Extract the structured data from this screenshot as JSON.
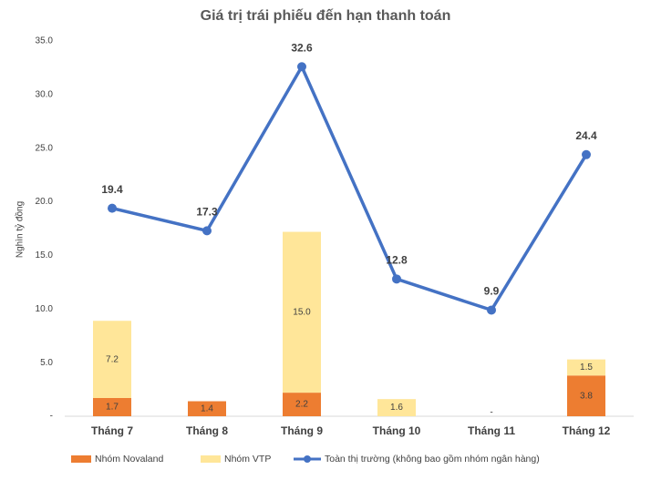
{
  "chart_data": {
    "type": "bar",
    "title": "Giá trị trái phiếu đến hạn thanh toán",
    "y_label": "Nghìn tỷ đồng",
    "categories": [
      "Tháng 7",
      "Tháng 8",
      "Tháng 9",
      "Tháng 10",
      "Tháng 11",
      "Tháng 12"
    ],
    "stacked": true,
    "series": [
      {
        "name": "Nhóm Novaland",
        "type": "bar",
        "color": "#ed7d31",
        "values": [
          1.7,
          1.4,
          2.2,
          0,
          0,
          3.8
        ],
        "value_labels": [
          "1.7",
          "1.4",
          "2.2",
          null,
          "-",
          "3.8"
        ]
      },
      {
        "name": "Nhóm VTP",
        "type": "bar",
        "color": "#ffe699",
        "values": [
          7.2,
          0,
          15.0,
          1.6,
          0,
          1.5
        ],
        "value_labels": [
          "7.2",
          null,
          "15.0",
          "1.6",
          null,
          "1.5"
        ]
      },
      {
        "name": "Toàn thị trường (không bao gồm nhóm ngân hàng)",
        "type": "line",
        "color": "#4472c4",
        "values": [
          19.4,
          17.3,
          32.6,
          12.8,
          9.9,
          24.4
        ]
      }
    ],
    "ylim": [
      0,
      35
    ],
    "yticks": [
      {
        "value": 0,
        "label": "-"
      },
      {
        "value": 5,
        "label": "5.0"
      },
      {
        "value": 10,
        "label": "10.0"
      },
      {
        "value": 15,
        "label": "15.0"
      },
      {
        "value": 20,
        "label": "20.0"
      },
      {
        "value": 25,
        "label": "25.0"
      },
      {
        "value": 30,
        "label": "30.0"
      },
      {
        "value": 35,
        "label": "35.0"
      }
    ],
    "grid": false,
    "legend": "bottom"
  }
}
